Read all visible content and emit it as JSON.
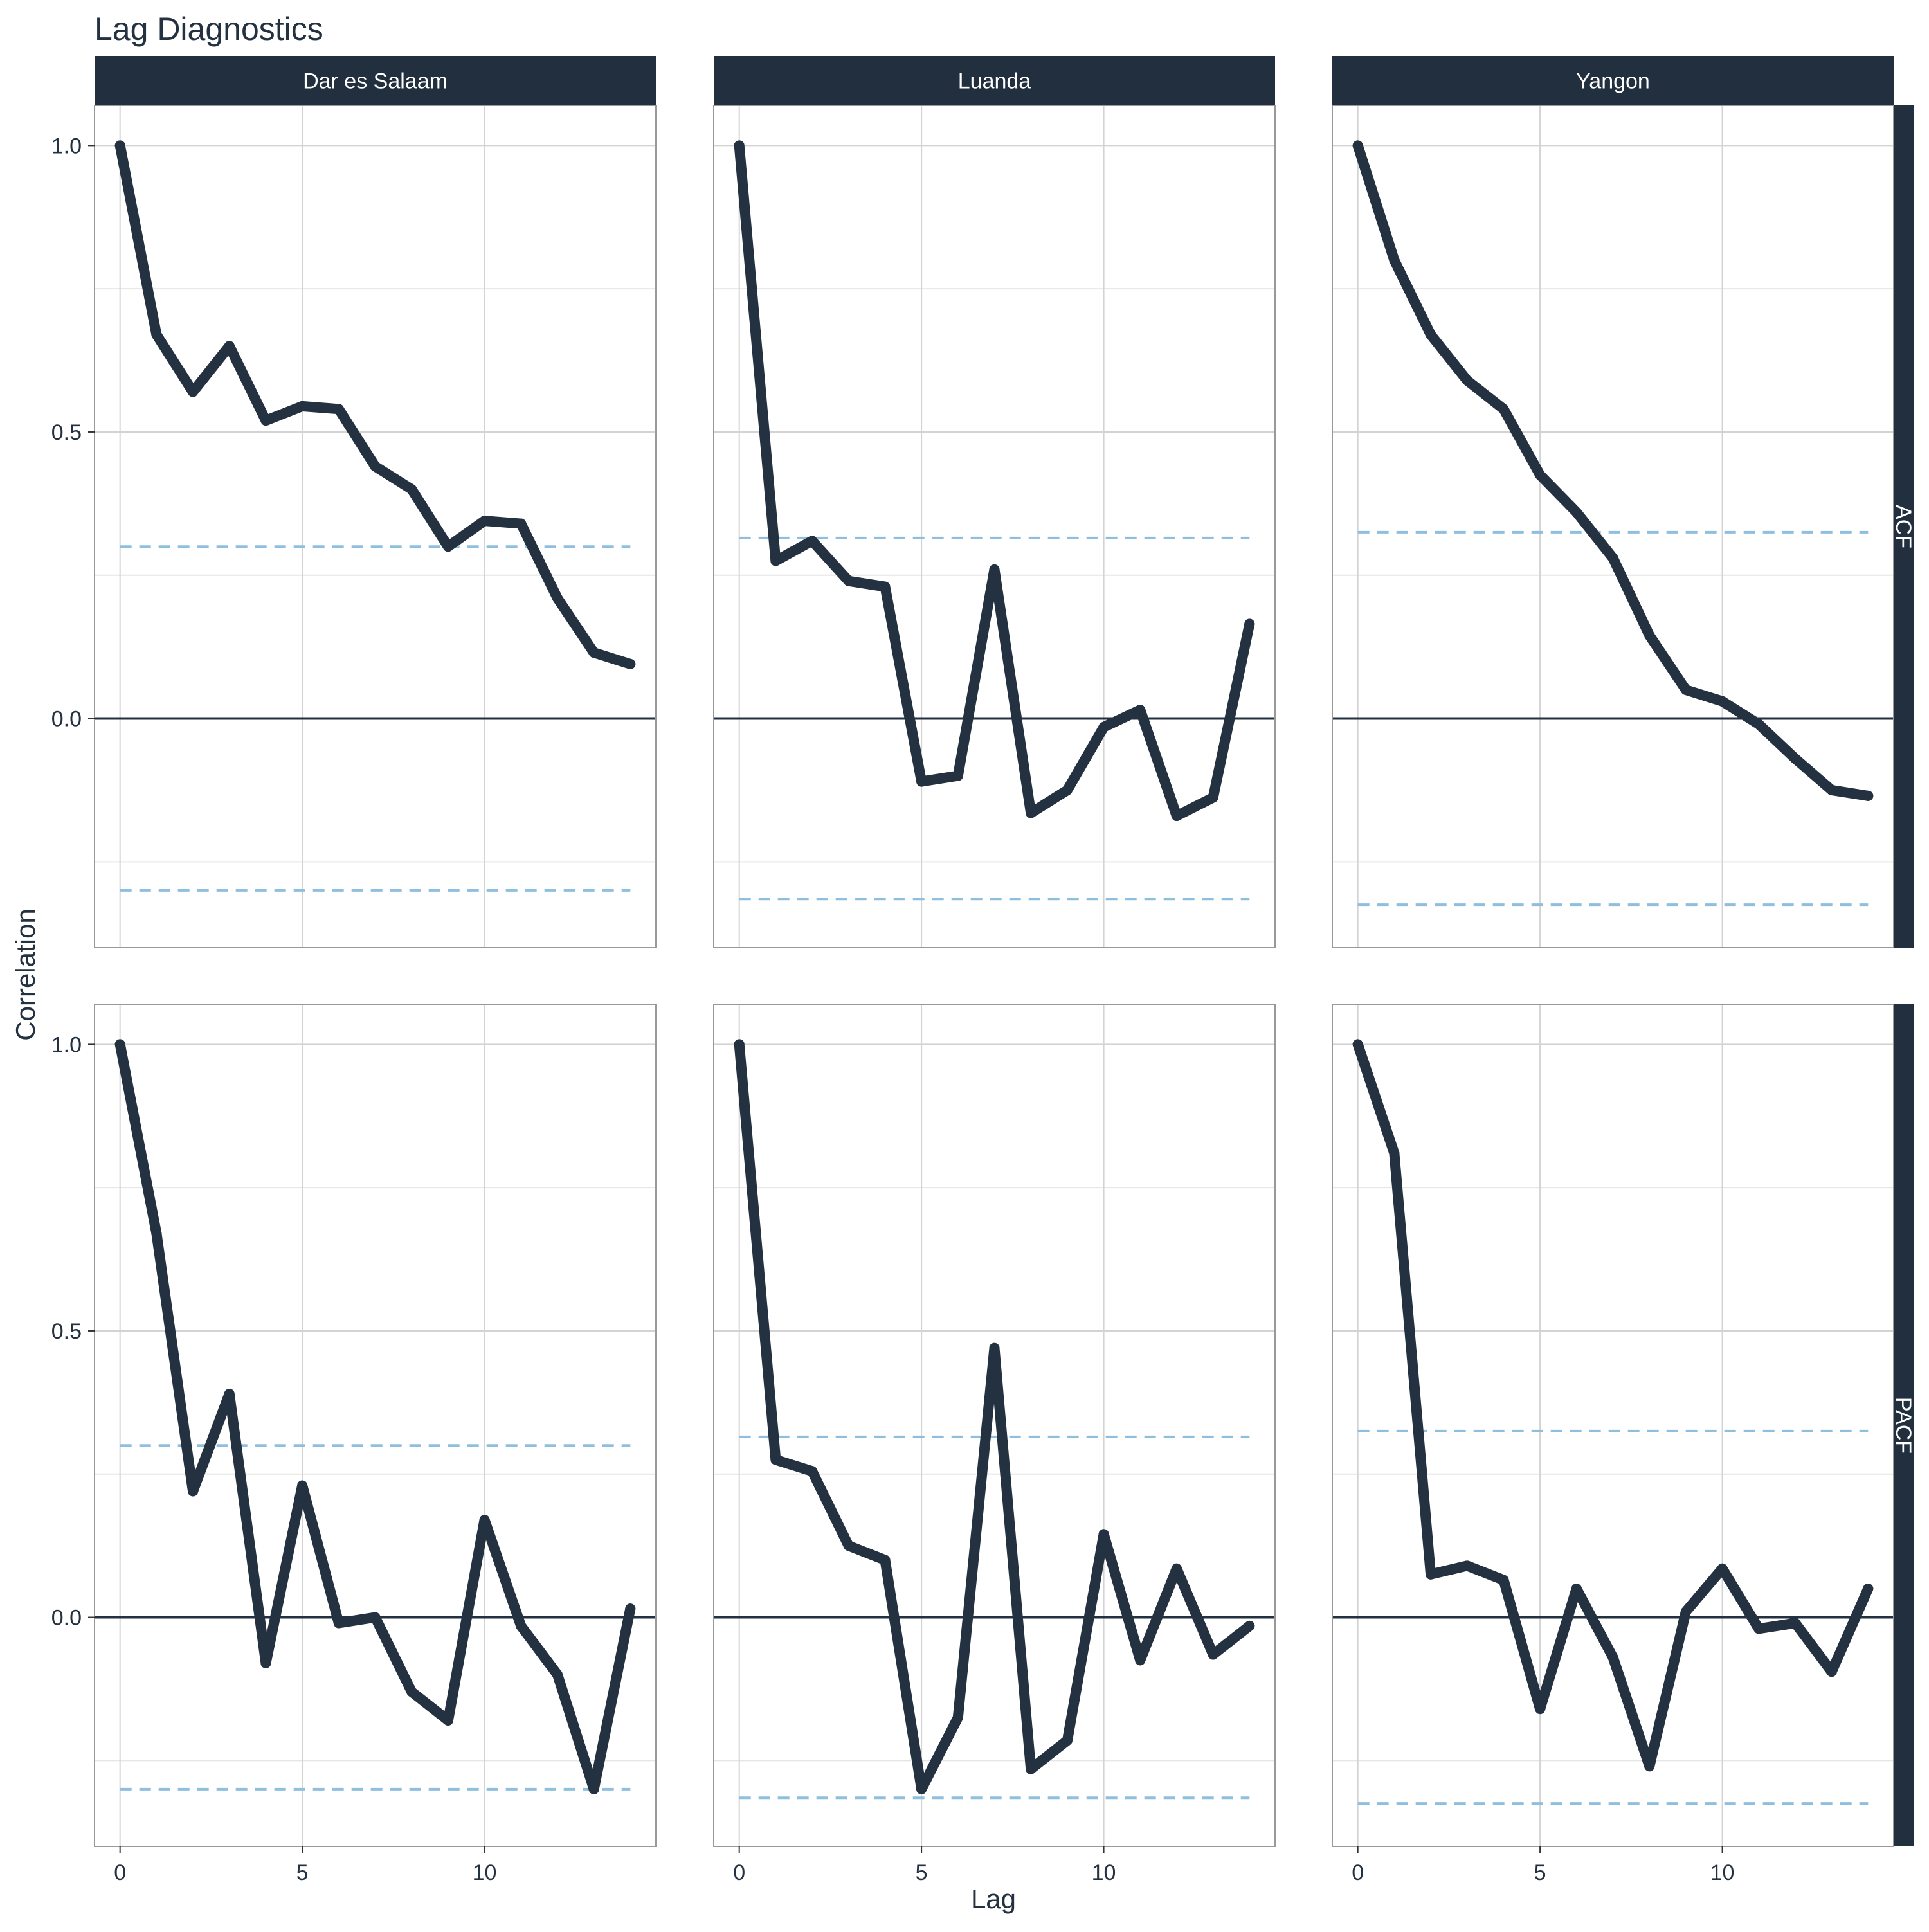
{
  "chart_data": {
    "type": "line",
    "title": "Lag Diagnostics",
    "xlabel": "Lag",
    "ylabel": "Correlation",
    "x_ticks": [
      0,
      5,
      10
    ],
    "y_ticks": [
      0.0,
      0.5,
      1.0
    ],
    "y_tick_labels": [
      "0.0",
      "0.5",
      "1.0"
    ],
    "xlim": [
      -0.7,
      14.7
    ],
    "ylim": [
      -0.4,
      1.07
    ],
    "grid": true,
    "facet_columns": [
      "Dar es Salaam",
      "Luanda",
      "Yangon"
    ],
    "facet_rows": [
      "ACF",
      "PACF"
    ],
    "colors": {
      "line": "#243140",
      "confidence_band": "#8fbfdf",
      "strip_background": "#222f3e",
      "strip_text": "#ffffff",
      "grid": "#d3d3d3",
      "zero_line": "#243140",
      "text": "#243140"
    },
    "lags": [
      0,
      1,
      2,
      3,
      4,
      5,
      6,
      7,
      8,
      9,
      10,
      11,
      12,
      13,
      14
    ],
    "panels": [
      {
        "row": "ACF",
        "column": "Dar es Salaam",
        "confidence_bounds": [
          0.3,
          -0.3
        ],
        "values": [
          1.0,
          0.67,
          0.57,
          0.65,
          0.52,
          0.545,
          0.54,
          0.44,
          0.4,
          0.3,
          0.345,
          0.34,
          0.21,
          0.115,
          0.095
        ]
      },
      {
        "row": "ACF",
        "column": "Luanda",
        "confidence_bounds": [
          0.315,
          -0.315
        ],
        "values": [
          1.0,
          0.275,
          0.31,
          0.24,
          0.23,
          -0.11,
          -0.1,
          0.26,
          -0.165,
          -0.125,
          -0.015,
          0.015,
          -0.17,
          -0.138,
          0.165
        ]
      },
      {
        "row": "ACF",
        "column": "Yangon",
        "confidence_bounds": [
          0.325,
          -0.325
        ],
        "values": [
          1.0,
          0.8,
          0.67,
          0.59,
          0.54,
          0.425,
          0.36,
          0.28,
          0.145,
          0.05,
          0.03,
          -0.01,
          -0.07,
          -0.125,
          -0.135
        ]
      },
      {
        "row": "PACF",
        "column": "Dar es Salaam",
        "confidence_bounds": [
          0.3,
          -0.3
        ],
        "values": [
          1.0,
          0.67,
          0.22,
          0.39,
          -0.08,
          0.23,
          -0.01,
          0.0,
          -0.13,
          -0.18,
          0.17,
          -0.015,
          -0.1,
          -0.3,
          0.015
        ]
      },
      {
        "row": "PACF",
        "column": "Luanda",
        "confidence_bounds": [
          0.315,
          -0.315
        ],
        "values": [
          1.0,
          0.275,
          0.255,
          0.125,
          0.1,
          -0.3,
          -0.175,
          0.47,
          -0.265,
          -0.215,
          0.145,
          -0.075,
          0.085,
          -0.065,
          -0.015
        ]
      },
      {
        "row": "PACF",
        "column": "Yangon",
        "confidence_bounds": [
          0.325,
          -0.325
        ],
        "values": [
          1.0,
          0.81,
          0.075,
          0.09,
          0.065,
          -0.16,
          0.05,
          -0.07,
          -0.26,
          0.01,
          0.085,
          -0.02,
          -0.01,
          -0.095,
          0.05
        ]
      }
    ]
  }
}
